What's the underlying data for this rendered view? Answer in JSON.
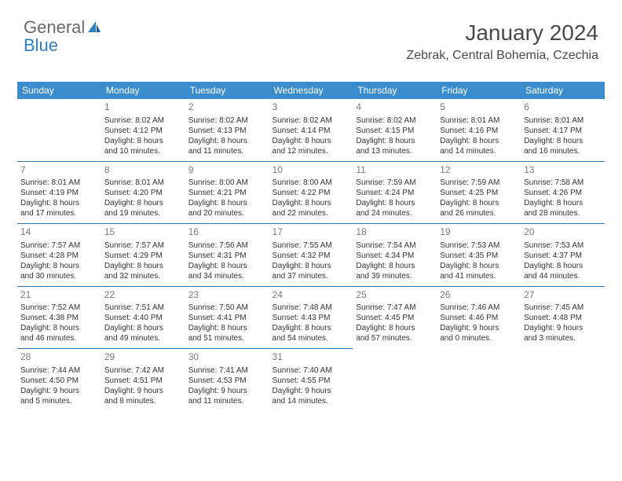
{
  "logo": {
    "text1": "General",
    "text2": "Blue"
  },
  "title": "January 2024",
  "location": "Zebrak, Central Bohemia, Czechia",
  "colors": {
    "header_bg": "#3b8ccc",
    "header_text": "#ffffff",
    "border": "#3b6fa0",
    "daynum": "#7a7a7a",
    "body_text": "#333333",
    "logo_gray": "#6a6a6a",
    "logo_blue": "#2f7fc2"
  },
  "weekdays": [
    "Sunday",
    "Monday",
    "Tuesday",
    "Wednesday",
    "Thursday",
    "Friday",
    "Saturday"
  ],
  "weeks": [
    [
      null,
      {
        "n": "1",
        "sr": "Sunrise: 8:02 AM",
        "ss": "Sunset: 4:12 PM",
        "d1": "Daylight: 8 hours",
        "d2": "and 10 minutes."
      },
      {
        "n": "2",
        "sr": "Sunrise: 8:02 AM",
        "ss": "Sunset: 4:13 PM",
        "d1": "Daylight: 8 hours",
        "d2": "and 11 minutes."
      },
      {
        "n": "3",
        "sr": "Sunrise: 8:02 AM",
        "ss": "Sunset: 4:14 PM",
        "d1": "Daylight: 8 hours",
        "d2": "and 12 minutes."
      },
      {
        "n": "4",
        "sr": "Sunrise: 8:02 AM",
        "ss": "Sunset: 4:15 PM",
        "d1": "Daylight: 8 hours",
        "d2": "and 13 minutes."
      },
      {
        "n": "5",
        "sr": "Sunrise: 8:01 AM",
        "ss": "Sunset: 4:16 PM",
        "d1": "Daylight: 8 hours",
        "d2": "and 14 minutes."
      },
      {
        "n": "6",
        "sr": "Sunrise: 8:01 AM",
        "ss": "Sunset: 4:17 PM",
        "d1": "Daylight: 8 hours",
        "d2": "and 16 minutes."
      }
    ],
    [
      {
        "n": "7",
        "sr": "Sunrise: 8:01 AM",
        "ss": "Sunset: 4:19 PM",
        "d1": "Daylight: 8 hours",
        "d2": "and 17 minutes."
      },
      {
        "n": "8",
        "sr": "Sunrise: 8:01 AM",
        "ss": "Sunset: 4:20 PM",
        "d1": "Daylight: 8 hours",
        "d2": "and 19 minutes."
      },
      {
        "n": "9",
        "sr": "Sunrise: 8:00 AM",
        "ss": "Sunset: 4:21 PM",
        "d1": "Daylight: 8 hours",
        "d2": "and 20 minutes."
      },
      {
        "n": "10",
        "sr": "Sunrise: 8:00 AM",
        "ss": "Sunset: 4:22 PM",
        "d1": "Daylight: 8 hours",
        "d2": "and 22 minutes."
      },
      {
        "n": "11",
        "sr": "Sunrise: 7:59 AM",
        "ss": "Sunset: 4:24 PM",
        "d1": "Daylight: 8 hours",
        "d2": "and 24 minutes."
      },
      {
        "n": "12",
        "sr": "Sunrise: 7:59 AM",
        "ss": "Sunset: 4:25 PM",
        "d1": "Daylight: 8 hours",
        "d2": "and 26 minutes."
      },
      {
        "n": "13",
        "sr": "Sunrise: 7:58 AM",
        "ss": "Sunset: 4:26 PM",
        "d1": "Daylight: 8 hours",
        "d2": "and 28 minutes."
      }
    ],
    [
      {
        "n": "14",
        "sr": "Sunrise: 7:57 AM",
        "ss": "Sunset: 4:28 PM",
        "d1": "Daylight: 8 hours",
        "d2": "and 30 minutes."
      },
      {
        "n": "15",
        "sr": "Sunrise: 7:57 AM",
        "ss": "Sunset: 4:29 PM",
        "d1": "Daylight: 8 hours",
        "d2": "and 32 minutes."
      },
      {
        "n": "16",
        "sr": "Sunrise: 7:56 AM",
        "ss": "Sunset: 4:31 PM",
        "d1": "Daylight: 8 hours",
        "d2": "and 34 minutes."
      },
      {
        "n": "17",
        "sr": "Sunrise: 7:55 AM",
        "ss": "Sunset: 4:32 PM",
        "d1": "Daylight: 8 hours",
        "d2": "and 37 minutes."
      },
      {
        "n": "18",
        "sr": "Sunrise: 7:54 AM",
        "ss": "Sunset: 4:34 PM",
        "d1": "Daylight: 8 hours",
        "d2": "and 39 minutes."
      },
      {
        "n": "19",
        "sr": "Sunrise: 7:53 AM",
        "ss": "Sunset: 4:35 PM",
        "d1": "Daylight: 8 hours",
        "d2": "and 41 minutes."
      },
      {
        "n": "20",
        "sr": "Sunrise: 7:53 AM",
        "ss": "Sunset: 4:37 PM",
        "d1": "Daylight: 8 hours",
        "d2": "and 44 minutes."
      }
    ],
    [
      {
        "n": "21",
        "sr": "Sunrise: 7:52 AM",
        "ss": "Sunset: 4:38 PM",
        "d1": "Daylight: 8 hours",
        "d2": "and 46 minutes."
      },
      {
        "n": "22",
        "sr": "Sunrise: 7:51 AM",
        "ss": "Sunset: 4:40 PM",
        "d1": "Daylight: 8 hours",
        "d2": "and 49 minutes."
      },
      {
        "n": "23",
        "sr": "Sunrise: 7:50 AM",
        "ss": "Sunset: 4:41 PM",
        "d1": "Daylight: 8 hours",
        "d2": "and 51 minutes."
      },
      {
        "n": "24",
        "sr": "Sunrise: 7:48 AM",
        "ss": "Sunset: 4:43 PM",
        "d1": "Daylight: 8 hours",
        "d2": "and 54 minutes."
      },
      {
        "n": "25",
        "sr": "Sunrise: 7:47 AM",
        "ss": "Sunset: 4:45 PM",
        "d1": "Daylight: 8 hours",
        "d2": "and 57 minutes."
      },
      {
        "n": "26",
        "sr": "Sunrise: 7:46 AM",
        "ss": "Sunset: 4:46 PM",
        "d1": "Daylight: 9 hours",
        "d2": "and 0 minutes."
      },
      {
        "n": "27",
        "sr": "Sunrise: 7:45 AM",
        "ss": "Sunset: 4:48 PM",
        "d1": "Daylight: 9 hours",
        "d2": "and 3 minutes."
      }
    ],
    [
      {
        "n": "28",
        "sr": "Sunrise: 7:44 AM",
        "ss": "Sunset: 4:50 PM",
        "d1": "Daylight: 9 hours",
        "d2": "and 5 minutes."
      },
      {
        "n": "29",
        "sr": "Sunrise: 7:42 AM",
        "ss": "Sunset: 4:51 PM",
        "d1": "Daylight: 9 hours",
        "d2": "and 8 minutes."
      },
      {
        "n": "30",
        "sr": "Sunrise: 7:41 AM",
        "ss": "Sunset: 4:53 PM",
        "d1": "Daylight: 9 hours",
        "d2": "and 11 minutes."
      },
      {
        "n": "31",
        "sr": "Sunrise: 7:40 AM",
        "ss": "Sunset: 4:55 PM",
        "d1": "Daylight: 9 hours",
        "d2": "and 14 minutes."
      },
      null,
      null,
      null
    ]
  ]
}
